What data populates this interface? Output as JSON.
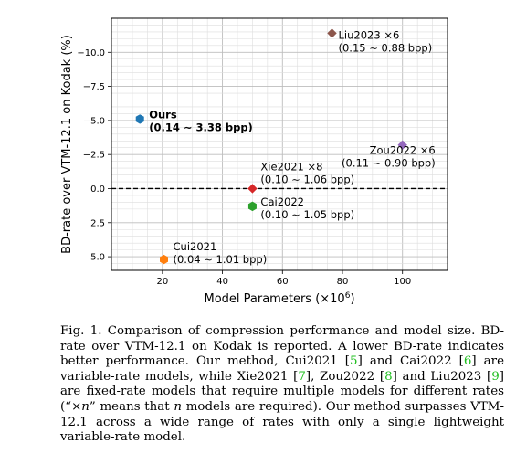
{
  "chart_data": {
    "type": "scatter",
    "xlabel": "Model Parameters (×10",
    "xlabel_exp": "6",
    "xlabel_close": ")",
    "ylabel": "BD-rate over VTM-12.1 on Kodak (%)",
    "xlim": [
      3,
      115
    ],
    "ylim": [
      6.0,
      -12.5
    ],
    "y_inverted": true,
    "grid": true,
    "xticks": [
      20,
      40,
      60,
      80,
      100
    ],
    "yticks": [
      -10.0,
      -7.5,
      -5.0,
      -2.5,
      0.0,
      2.5,
      5.0
    ],
    "ytick_labels": [
      "−10.0",
      "−7.5",
      "−5.0",
      "−2.5",
      "0.0",
      "2.5",
      "5.0"
    ],
    "reference_line": {
      "y": 0.0,
      "style": "dashed"
    },
    "points": [
      {
        "x": 12.5,
        "y": -5.1,
        "marker": "hexagon",
        "color": "#1f77b4",
        "label1": "Ours",
        "label2": "(0.14 ∼ 3.38 bpp)",
        "bold": true
      },
      {
        "x": 76.5,
        "y": -11.4,
        "marker": "diamond",
        "color": "#8c564b",
        "label1": "Liu2023 ×6",
        "label2": "(0.15 ∼ 0.88 bpp)",
        "bold": false
      },
      {
        "x": 100.0,
        "y": -3.2,
        "marker": "diamond",
        "color": "#9467bd",
        "label1": "Zou2022 ×6",
        "label2": "(0.11 ∼ 0.90 bpp)",
        "bold": false
      },
      {
        "x": 50.0,
        "y": 0.0,
        "marker": "diamond",
        "color": "#d62728",
        "label1": "Xie2021 ×8",
        "label2": "(0.10 ∼ 1.06 bpp)",
        "bold": false
      },
      {
        "x": 50.0,
        "y": 1.3,
        "marker": "hexagon",
        "color": "#2ca02c",
        "label1": "Cai2022",
        "label2": "(0.10 ∼ 1.05 bpp)",
        "bold": false
      },
      {
        "x": 20.5,
        "y": 5.2,
        "marker": "hexagon",
        "color": "#ff7f0e",
        "label1": "Cui2021",
        "label2": "(0.04 ∼ 1.01 bpp)",
        "bold": false
      }
    ]
  },
  "caption": {
    "p1": "Fig. 1.  Comparison of compression performance and model size. BD-rate over VTM-12.1 on Kodak is reported. A lower BD-rate indicates better performance. Our method, Cui2021 [",
    "r1": "5",
    "p2": "] and Cai2022 [",
    "r2": "6",
    "p3": "] are variable-rate models, while Xie2021 [",
    "r3": "7",
    "p4": "], Zou2022 [",
    "r4": "8",
    "p5": "] and Liu2023 [",
    "r5": "9",
    "p6": "] are fixed-rate models that require multiple models for different rates (“×",
    "n1": "n",
    "p7": "” means that ",
    "n2": "n",
    "p8": " models are required). Our method surpasses VTM-12.1 across a wide range of rates with only a single lightweight variable-rate model."
  }
}
